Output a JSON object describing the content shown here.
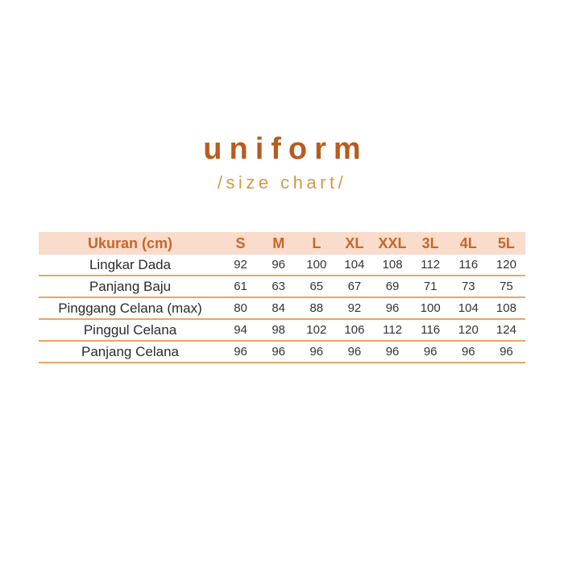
{
  "title": "uniform",
  "subtitle": "/size chart/",
  "colors": {
    "title": "#b95b1f",
    "subtitle": "#d19a45",
    "header_bg": "#f9dccb",
    "header_text": "#c8662a",
    "row_line": "#e9a567"
  },
  "table": {
    "header_label": "Ukuran (cm)",
    "sizes": [
      "S",
      "M",
      "L",
      "XL",
      "XXL",
      "3L",
      "4L",
      "5L"
    ],
    "rows": [
      {
        "label": "Lingkar Dada",
        "values": [
          "92",
          "96",
          "100",
          "104",
          "108",
          "112",
          "116",
          "120"
        ]
      },
      {
        "label": "Panjang Baju",
        "values": [
          "61",
          "63",
          "65",
          "67",
          "69",
          "71",
          "73",
          "75"
        ]
      },
      {
        "label": "Pinggang Celana (max)",
        "values": [
          "80",
          "84",
          "88",
          "92",
          "96",
          "100",
          "104",
          "108"
        ]
      },
      {
        "label": "Pinggul Celana",
        "values": [
          "94",
          "98",
          "102",
          "106",
          "112",
          "116",
          "120",
          "124"
        ]
      },
      {
        "label": "Panjang Celana",
        "values": [
          "96",
          "96",
          "96",
          "96",
          "96",
          "96",
          "96",
          "96"
        ]
      }
    ]
  }
}
